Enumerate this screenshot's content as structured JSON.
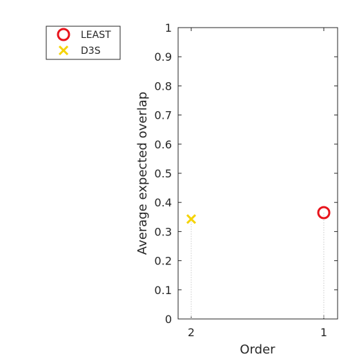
{
  "chart_data": {
    "type": "scatter",
    "title": "",
    "xlabel": "Order",
    "ylabel": "Average expected overlap",
    "ylim": [
      0,
      1
    ],
    "yticks": [
      "0",
      "0.1",
      "0.2",
      "0.3",
      "0.4",
      "0.5",
      "0.6",
      "0.7",
      "0.8",
      "0.9",
      "1"
    ],
    "x_categories": [
      "2",
      "1"
    ],
    "grid": false,
    "legend_position": "top-left-outside",
    "series": [
      {
        "name": "LEAST",
        "marker": "circle",
        "color": "#e8141c",
        "x": "1",
        "y": 0.365
      },
      {
        "name": "D3S",
        "marker": "x",
        "color": "#f5d300",
        "x": "2",
        "y": 0.343
      }
    ]
  }
}
